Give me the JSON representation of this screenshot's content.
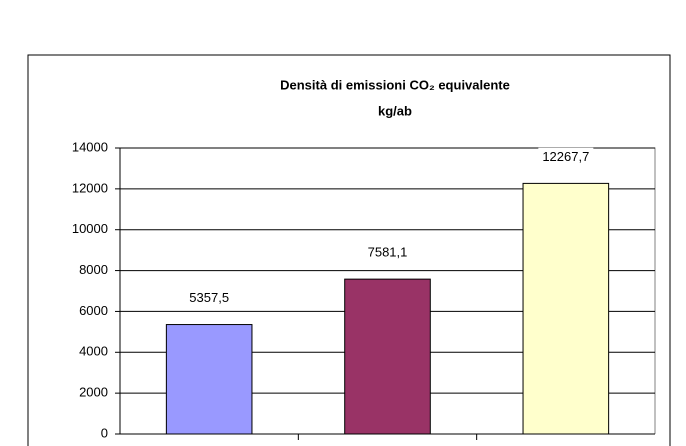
{
  "chart_data": {
    "type": "bar",
    "title": "Densità di emissioni CO₂ equivalente",
    "subtitle": "kg/ab",
    "categories": [
      null,
      null,
      null
    ],
    "values": [
      5357.5,
      7581.1,
      12267.7
    ],
    "value_labels": [
      "5357,5",
      "7581,1",
      "12267,7"
    ],
    "colors": [
      "#9999ff",
      "#993366",
      "#ffffcc"
    ],
    "ylim": [
      0,
      14000
    ],
    "yticks": [
      0,
      2000,
      4000,
      6000,
      8000,
      10000,
      12000,
      14000
    ],
    "grid": true
  }
}
